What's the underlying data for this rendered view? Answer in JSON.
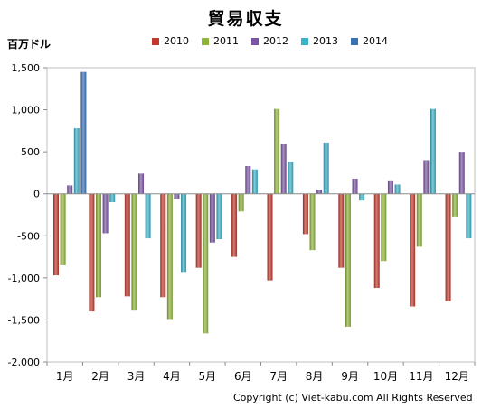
{
  "chart_data": {
    "type": "bar",
    "title": "貿易収支",
    "ylabel": "百万ドル",
    "xlabel": "",
    "categories": [
      "1月",
      "2月",
      "3月",
      "4月",
      "5月",
      "6月",
      "7月",
      "8月",
      "9月",
      "10月",
      "11月",
      "12月"
    ],
    "yticks": [
      "1,500",
      "1,000",
      "500",
      "0",
      "-500",
      "-1,000",
      "-1,500",
      "-2,000"
    ],
    "ylim": [
      -2000,
      1500
    ],
    "grid": false,
    "legend_position": "top",
    "series": [
      {
        "name": "2010",
        "color": "#c0392b",
        "values": [
          -970,
          -1400,
          -1220,
          -1230,
          -880,
          -750,
          -1030,
          -480,
          -880,
          -1120,
          -1340,
          -1280
        ]
      },
      {
        "name": "2011",
        "color": "#8db33a",
        "values": [
          -850,
          -1230,
          -1390,
          -1490,
          -1660,
          -210,
          1010,
          -670,
          -1580,
          -800,
          -630,
          -270
        ]
      },
      {
        "name": "2012",
        "color": "#7b55a3",
        "values": [
          100,
          -470,
          240,
          -60,
          -580,
          330,
          590,
          50,
          180,
          160,
          400,
          500
        ]
      },
      {
        "name": "2013",
        "color": "#3ab0c8",
        "values": [
          780,
          -100,
          -530,
          -930,
          -540,
          290,
          380,
          610,
          -80,
          110,
          1010,
          -530
        ]
      },
      {
        "name": "2014",
        "color": "#3a72b5",
        "values": [
          1450,
          null,
          null,
          null,
          null,
          null,
          null,
          null,
          null,
          null,
          null,
          null
        ]
      }
    ]
  },
  "copyright": "Copyright (c) Viet-kabu.com All Rights Reserved"
}
